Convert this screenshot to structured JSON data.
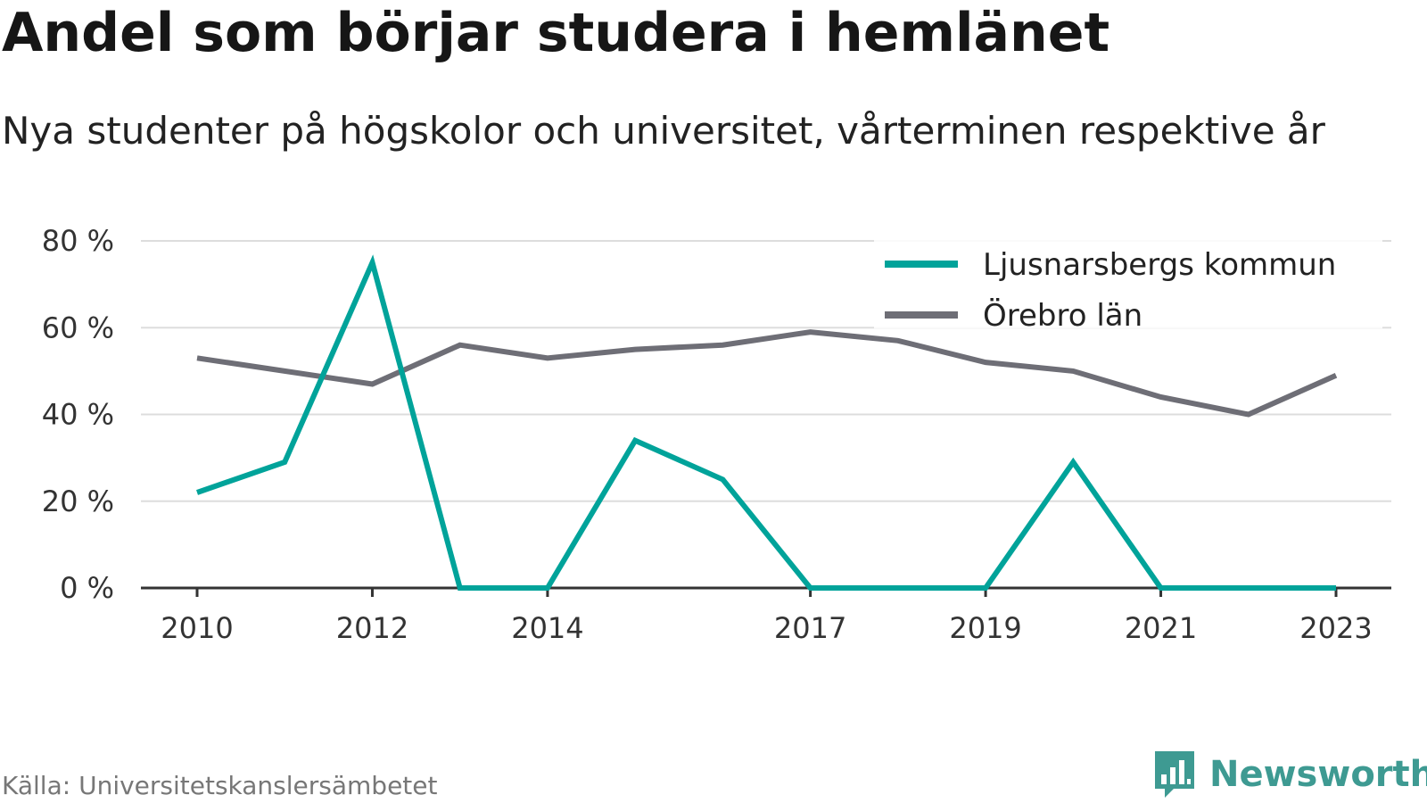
{
  "chart_data": {
    "type": "line",
    "title": "Andel som börjar studera i hemlänet",
    "subtitle": "Nya studenter på högskolor och universitet, vårterminen respektive år",
    "x": [
      2010,
      2011,
      2012,
      2013,
      2014,
      2015,
      2016,
      2017,
      2018,
      2019,
      2020,
      2021,
      2022,
      2023
    ],
    "x_tick_labels": [
      "2010",
      "2012",
      "2014",
      "2017",
      "2019",
      "2021",
      "2023"
    ],
    "y_tick_labels": [
      "0 %",
      "20 %",
      "40 %",
      "60 %",
      "80 %"
    ],
    "ylim": [
      0,
      80
    ],
    "grid": true,
    "legend_position": "top-right",
    "series": [
      {
        "name": "Ljusnarsbergs kommun",
        "color": "#00a39a",
        "values": [
          22,
          29,
          75,
          0,
          0,
          34,
          25,
          0,
          0,
          0,
          29,
          0,
          0,
          0
        ]
      },
      {
        "name": "Örebro län",
        "color": "#6e6e76",
        "values": [
          53,
          50,
          47,
          56,
          53,
          55,
          56,
          59,
          57,
          52,
          50,
          44,
          40,
          49
        ]
      }
    ]
  },
  "source": "Källa: Universitetskanslersämbetet",
  "logo": {
    "text": "Newsworthy",
    "icon": "newsworthy-bar-chart-icon",
    "color": "#3e9a92"
  }
}
